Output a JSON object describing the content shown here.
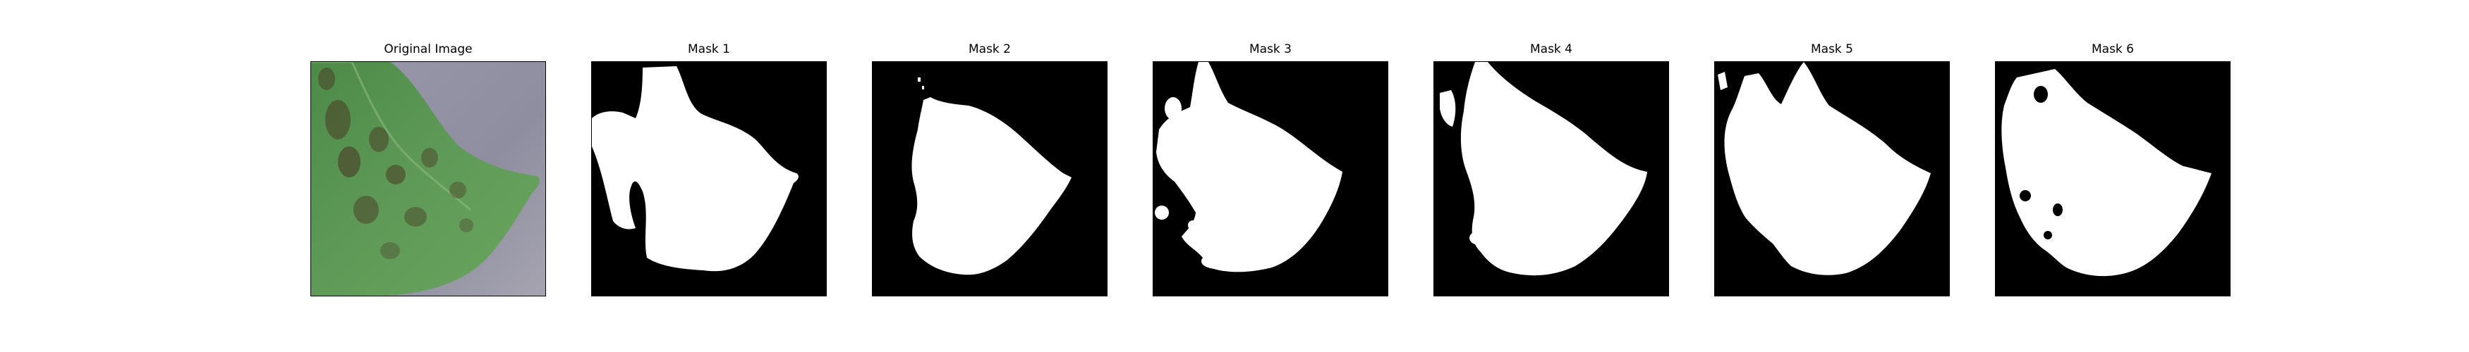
{
  "figure": {
    "panels": [
      {
        "title": "Original Image",
        "kind": "photo"
      },
      {
        "title": "Mask 1",
        "kind": "mask"
      },
      {
        "title": "Mask 2",
        "kind": "mask"
      },
      {
        "title": "Mask 3",
        "kind": "mask"
      },
      {
        "title": "Mask 4",
        "kind": "mask"
      },
      {
        "title": "Mask 5",
        "kind": "mask"
      },
      {
        "title": "Mask 6",
        "kind": "mask"
      }
    ]
  },
  "colors": {
    "mask_background": "#000000",
    "mask_foreground": "#ffffff",
    "leaf_green": "#5f9a58",
    "leaf_dark_green": "#3f7a3a",
    "lesion_brown": "#4a3a24",
    "photo_background": "#8e8ea0"
  }
}
